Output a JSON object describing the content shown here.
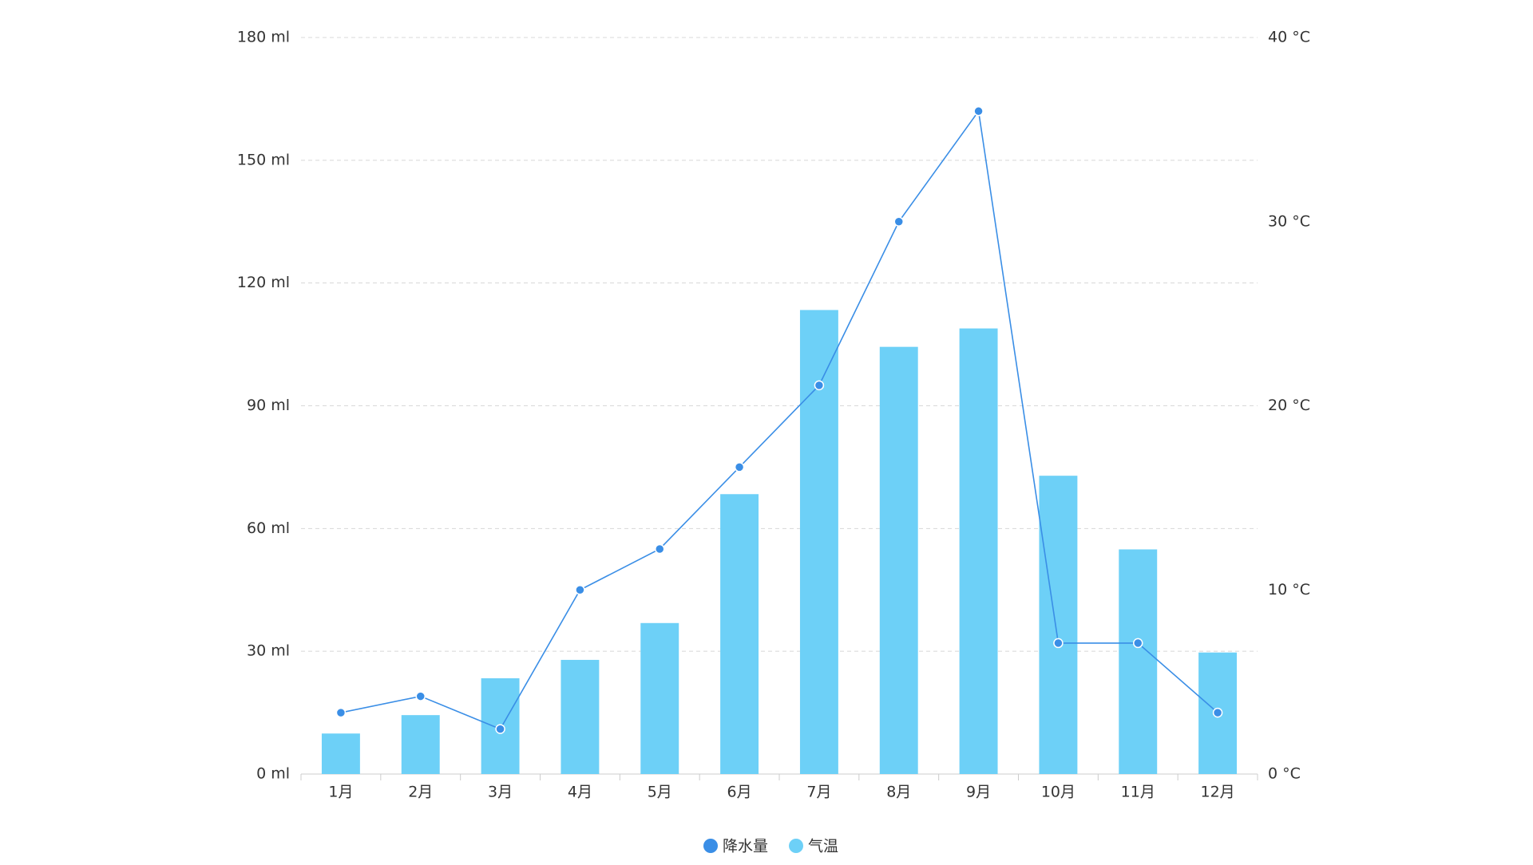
{
  "chart_data": {
    "type": "combo",
    "categories": [
      "1月",
      "2月",
      "3月",
      "4月",
      "5月",
      "6月",
      "7月",
      "8月",
      "9月",
      "10月",
      "11月",
      "12月"
    ],
    "series": [
      {
        "name": "降水量",
        "type": "line",
        "axis": "y",
        "color": "#3a8ee6",
        "values": [
          15,
          19,
          11,
          45,
          55,
          75,
          95,
          135,
          162,
          32,
          32,
          15
        ]
      },
      {
        "name": "气温",
        "type": "bar",
        "axis": "y2",
        "color": "#6dd0f7",
        "values": [
          2.2,
          3.2,
          5.2,
          6.2,
          8.2,
          15.2,
          25.2,
          23.2,
          24.2,
          16.2,
          12.2,
          6.6
        ]
      }
    ],
    "ylim": [
      0,
      180
    ],
    "yticks": [
      {
        "value": 0,
        "label": "0 ml"
      },
      {
        "value": 30,
        "label": "30 ml"
      },
      {
        "value": 60,
        "label": "60 ml"
      },
      {
        "value": 90,
        "label": "90 ml"
      },
      {
        "value": 120,
        "label": "120 ml"
      },
      {
        "value": 150,
        "label": "150 ml"
      },
      {
        "value": 180,
        "label": "180 ml"
      }
    ],
    "y2lim": [
      0,
      40
    ],
    "y2ticks": [
      {
        "value": 0,
        "label": "0 °C"
      },
      {
        "value": 10,
        "label": "10 °C"
      },
      {
        "value": 20,
        "label": "20 °C"
      },
      {
        "value": 30,
        "label": "30 °C"
      },
      {
        "value": 40,
        "label": "40 °C"
      }
    ],
    "grid": true,
    "legend": "bottom"
  }
}
